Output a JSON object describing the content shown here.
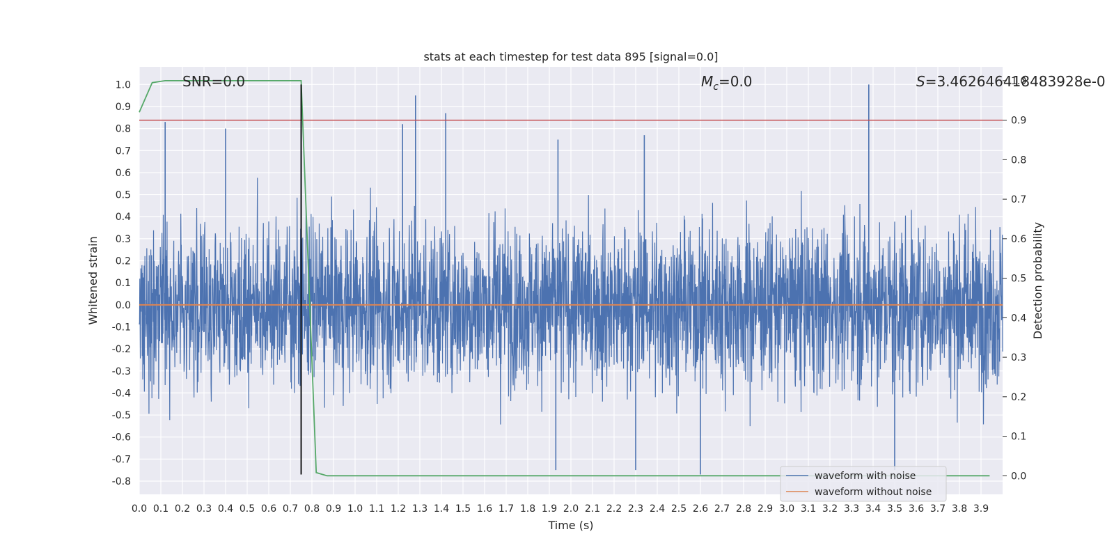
{
  "chart_data": {
    "type": "line",
    "title": "stats at each timestep for test data 895 [signal=0.0]",
    "xlabel": "Time (s)",
    "ylabel": "Whitened strain",
    "y2label": "Detection probability",
    "xlim": [
      0.0,
      4.0
    ],
    "ylim": [
      -0.86,
      1.08
    ],
    "y2lim": [
      -0.047,
      1.035
    ],
    "grid": true,
    "x_ticks": [
      "0.0",
      "0.1",
      "0.2",
      "0.3",
      "0.4",
      "0.5",
      "0.6",
      "0.7",
      "0.8",
      "0.9",
      "1.0",
      "1.1",
      "1.2",
      "1.3",
      "1.4",
      "1.5",
      "1.6",
      "1.7",
      "1.8",
      "1.9",
      "2.0",
      "2.1",
      "2.2",
      "2.3",
      "2.4",
      "2.5",
      "2.6",
      "2.7",
      "2.8",
      "2.9",
      "3.0",
      "3.1",
      "3.2",
      "3.3",
      "3.4",
      "3.5",
      "3.6",
      "3.7",
      "3.8",
      "3.9"
    ],
    "y_ticks": [
      "1.0",
      "0.9",
      "0.8",
      "0.7",
      "0.6",
      "0.5",
      "0.4",
      "0.3",
      "0.2",
      "0.1",
      "0.0",
      "-0.1",
      "-0.2",
      "-0.3",
      "-0.4",
      "-0.5",
      "-0.6",
      "-0.7",
      "-0.8"
    ],
    "y2_ticks": [
      "1.0",
      "0.9",
      "0.8",
      "0.7",
      "0.6",
      "0.5",
      "0.4",
      "0.3",
      "0.2",
      "0.1",
      "0.0"
    ],
    "annotations": {
      "snr": "SNR=0.0",
      "mc_symbol": "M",
      "mc_sub": "c",
      "mc_value": "=0.0",
      "s_symbol": "S",
      "s_value": "=3.462646418483928e-0"
    },
    "series": [
      {
        "name": "waveform with noise",
        "color": "#4c72b0",
        "description_values": "dense noise, typical range -0.5 to 0.6",
        "peaks": [
          {
            "x": 0.12,
            "y": 0.83
          },
          {
            "x": 0.4,
            "y": 0.8
          },
          {
            "x": 0.75,
            "y": 0.83
          },
          {
            "x": 1.22,
            "y": 0.82
          },
          {
            "x": 1.28,
            "y": 0.95
          },
          {
            "x": 1.42,
            "y": 0.87
          },
          {
            "x": 1.94,
            "y": 0.75
          },
          {
            "x": 2.34,
            "y": 0.77
          },
          {
            "x": 3.38,
            "y": 1.0
          },
          {
            "x": 1.93,
            "y": -0.75
          },
          {
            "x": 2.3,
            "y": -0.75
          },
          {
            "x": 2.6,
            "y": -0.77
          },
          {
            "x": 3.5,
            "y": -0.75
          }
        ]
      },
      {
        "name": "waveform without noise",
        "color": "#dd8452",
        "x": [
          0.0,
          4.0
        ],
        "y": [
          0.0,
          0.0
        ]
      },
      {
        "name": "detection probability",
        "color": "#55a868",
        "axis": "right",
        "x": [
          0.0,
          0.06,
          0.12,
          0.2,
          0.3,
          0.4,
          0.5,
          0.6,
          0.7,
          0.75,
          0.82,
          0.87,
          1.0,
          2.0,
          3.0,
          3.94
        ],
        "y": [
          0.92,
          0.995,
          1.0,
          1.0,
          1.0,
          1.0,
          1.0,
          1.0,
          1.0,
          1.0,
          0.008,
          0.0,
          0.0,
          0.0,
          0.0,
          0.0
        ]
      }
    ],
    "threshold": {
      "axis": "right",
      "value": 0.9,
      "color": "#c44e52"
    },
    "vline": {
      "x": 0.75,
      "y_from": -0.77,
      "y_to": 1.0,
      "color": "#000000"
    },
    "legend": {
      "placement": "lower-right",
      "entries": [
        "waveform with noise",
        "waveform without noise"
      ]
    }
  }
}
